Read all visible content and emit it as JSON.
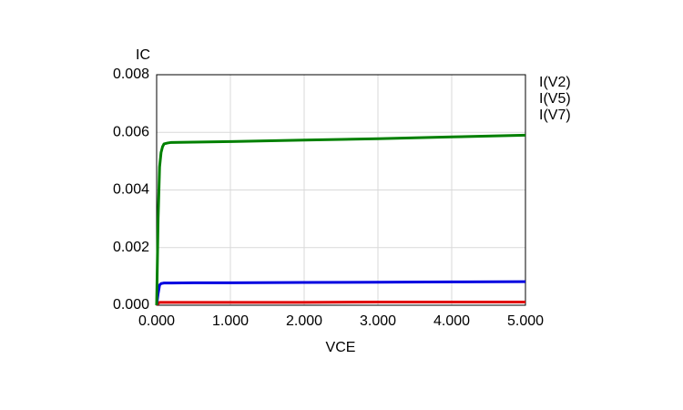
{
  "chart_data": {
    "type": "line",
    "x_label": "VCE",
    "y_label": "IC",
    "x": [
      0,
      0.02,
      0.04,
      0.06,
      0.08,
      0.1,
      0.15,
      0.2,
      0.5,
      1,
      2,
      3,
      4,
      5
    ],
    "series": [
      {
        "name": "I(V2)",
        "color": "#e00000",
        "values": [
          0,
          6e-05,
          0.0001,
          0.0001,
          0.0001,
          0.0001,
          0.0001,
          0.0001,
          0.0001,
          0.0001,
          0.0001,
          0.00011,
          0.00011,
          0.00011
        ]
      },
      {
        "name": "I(V5)",
        "color": "#0000e0",
        "values": [
          0,
          0.0004,
          0.0007,
          0.00075,
          0.00076,
          0.00077,
          0.00077,
          0.00077,
          0.00078,
          0.00078,
          0.00079,
          0.0008,
          0.00081,
          0.00082
        ]
      },
      {
        "name": "I(V7)",
        "color": "#008000",
        "values": [
          0,
          0.003,
          0.0048,
          0.0053,
          0.0055,
          0.0056,
          0.00563,
          0.00565,
          0.00566,
          0.00568,
          0.00573,
          0.00578,
          0.00584,
          0.0059
        ]
      }
    ],
    "xlim": [
      0,
      5
    ],
    "ylim": [
      0,
      0.008
    ],
    "xticks": [
      {
        "value": 0,
        "label": "0.000"
      },
      {
        "value": 1,
        "label": "1.000"
      },
      {
        "value": 2,
        "label": "2.000"
      },
      {
        "value": 3,
        "label": "3.000"
      },
      {
        "value": 4,
        "label": "4.000"
      },
      {
        "value": 5,
        "label": "5.000"
      }
    ],
    "yticks": [
      {
        "value": 0,
        "label": "0.000"
      },
      {
        "value": 0.002,
        "label": "0.002"
      },
      {
        "value": 0.004,
        "label": "0.004"
      },
      {
        "value": 0.006,
        "label": "0.006"
      },
      {
        "value": 0.008,
        "label": "0.008"
      }
    ],
    "grid": true,
    "legend": "right"
  }
}
